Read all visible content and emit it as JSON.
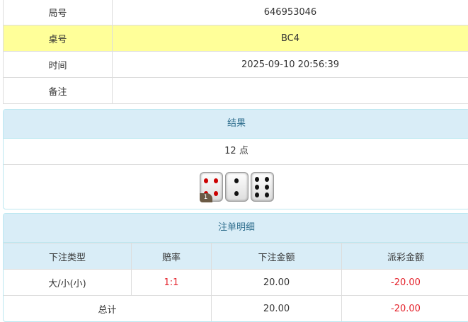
{
  "info": [
    {
      "label": "局号",
      "value": "646953046"
    },
    {
      "label": "桌号",
      "value": "BC4",
      "highlight": true
    },
    {
      "label": "时间",
      "value": "2025-09-10 20:56:39"
    },
    {
      "label": "备注",
      "value": ""
    }
  ],
  "result": {
    "title": "结果",
    "points": "12 点",
    "dice": [
      4,
      2,
      6
    ],
    "badge": "1"
  },
  "bets": {
    "title": "注单明细",
    "headers": [
      "下注类型",
      "赔率",
      "下注金额",
      "派彩金额"
    ],
    "rows": [
      {
        "type": "大/小(小)",
        "odds": "1:1",
        "amount": "20.00",
        "payout": "-20.00"
      }
    ],
    "total": {
      "label": "总计",
      "amount": "20.00",
      "payout": "-20.00"
    }
  },
  "colors": {
    "header_bg": "#d9edf7",
    "highlight": "#ffff99",
    "negative": "#e4222b"
  }
}
